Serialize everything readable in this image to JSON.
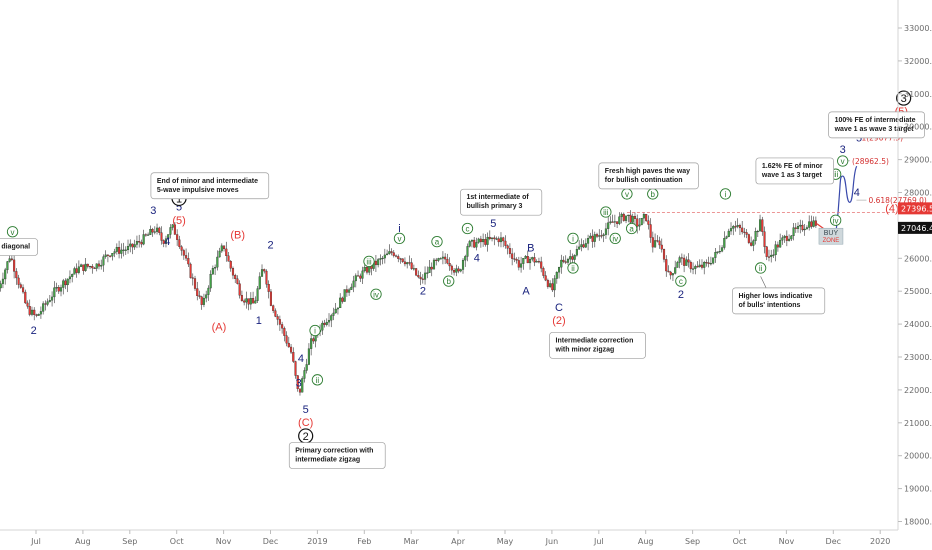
{
  "chart_data": {
    "type": "candlestick",
    "y_axis_side": "right",
    "y_ticks": [
      "33000.0",
      "32000.0",
      "31000.0",
      "30000.0",
      "29000.0",
      "28000.0",
      "27000.0",
      "26000.0",
      "25000.0",
      "24000.0",
      "23000.0",
      "22000.0",
      "21000.0",
      "20000.0",
      "19000.0",
      "18000.0"
    ],
    "ylim": [
      17700,
      33600
    ],
    "x_ticks": [
      {
        "label": "Jul",
        "month_index": 1
      },
      {
        "label": "Aug",
        "month_index": 2
      },
      {
        "label": "Sep",
        "month_index": 3
      },
      {
        "label": "Oct",
        "month_index": 4
      },
      {
        "label": "Nov",
        "month_index": 5
      },
      {
        "label": "Dec",
        "month_index": 6
      },
      {
        "label": "2019",
        "month_index": 7
      },
      {
        "label": "Feb",
        "month_index": 8
      },
      {
        "label": "Mar",
        "month_index": 9
      },
      {
        "label": "Apr",
        "month_index": 10
      },
      {
        "label": "May",
        "month_index": 11
      },
      {
        "label": "Jun",
        "month_index": 12
      },
      {
        "label": "Jul",
        "month_index": 13
      },
      {
        "label": "Aug",
        "month_index": 14
      },
      {
        "label": "Sep",
        "month_index": 15
      },
      {
        "label": "Oct",
        "month_index": 16
      },
      {
        "label": "Nov",
        "month_index": 17
      },
      {
        "label": "Dec",
        "month_index": 18
      },
      {
        "label": "2020",
        "month_index": 19
      }
    ],
    "xlim": [
      0.2,
      19.45
    ],
    "price_path": [
      [
        0.2,
        25100
      ],
      [
        0.45,
        26100
      ],
      [
        0.8,
        24500
      ],
      [
        1.0,
        24200
      ],
      [
        1.4,
        25000
      ],
      [
        1.9,
        25700
      ],
      [
        2.3,
        25800
      ],
      [
        2.6,
        26200
      ],
      [
        3.0,
        26300
      ],
      [
        3.3,
        26600
      ],
      [
        3.55,
        26900
      ],
      [
        3.7,
        26500
      ],
      [
        3.9,
        26950
      ],
      [
        4.0,
        26700
      ],
      [
        4.3,
        25500
      ],
      [
        4.55,
        24500
      ],
      [
        4.75,
        25600
      ],
      [
        5.0,
        26400
      ],
      [
        5.1,
        25900
      ],
      [
        5.4,
        24800
      ],
      [
        5.65,
        24600
      ],
      [
        5.85,
        25800
      ],
      [
        6.0,
        24700
      ],
      [
        6.2,
        24000
      ],
      [
        6.45,
        23100
      ],
      [
        6.6,
        21800
      ],
      [
        6.85,
        23400
      ],
      [
        7.1,
        24000
      ],
      [
        7.4,
        24500
      ],
      [
        7.7,
        25200
      ],
      [
        8.0,
        25600
      ],
      [
        8.3,
        25900
      ],
      [
        8.6,
        26200
      ],
      [
        8.9,
        25900
      ],
      [
        9.2,
        25300
      ],
      [
        9.45,
        25800
      ],
      [
        9.75,
        26000
      ],
      [
        10.0,
        25500
      ],
      [
        10.2,
        26400
      ],
      [
        10.5,
        26500
      ],
      [
        10.9,
        26600
      ],
      [
        11.1,
        26200
      ],
      [
        11.3,
        25800
      ],
      [
        11.5,
        26000
      ],
      [
        11.7,
        25900
      ],
      [
        12.0,
        25000
      ],
      [
        12.2,
        25900
      ],
      [
        12.45,
        26100
      ],
      [
        12.7,
        26500
      ],
      [
        13.0,
        26700
      ],
      [
        13.3,
        27100
      ],
      [
        13.6,
        27300
      ],
      [
        13.85,
        27000
      ],
      [
        14.0,
        27300
      ],
      [
        14.15,
        26400
      ],
      [
        14.3,
        26500
      ],
      [
        14.5,
        25400
      ],
      [
        14.7,
        26000
      ],
      [
        14.9,
        25800
      ],
      [
        15.1,
        25700
      ],
      [
        15.3,
        25800
      ],
      [
        15.55,
        26200
      ],
      [
        15.8,
        27000
      ],
      [
        16.0,
        26900
      ],
      [
        16.25,
        26500
      ],
      [
        16.45,
        27100
      ],
      [
        16.6,
        25900
      ],
      [
        16.75,
        26300
      ],
      [
        16.95,
        26600
      ],
      [
        17.15,
        26800
      ],
      [
        17.3,
        26900
      ],
      [
        17.5,
        27100
      ],
      [
        17.65,
        27050
      ]
    ],
    "projection_red": [
      [
        17.65,
        27050
      ],
      [
        17.8,
        26900
      ],
      [
        17.9,
        26500
      ],
      [
        18.05,
        26700
      ]
    ],
    "projection_blue": [
      [
        18.05,
        26700
      ],
      [
        18.2,
        28500
      ],
      [
        18.35,
        27700
      ],
      [
        18.5,
        28800
      ]
    ],
    "price_labels": [
      {
        "value": "27396.5",
        "price": 27396.5,
        "color": "#e53935"
      },
      {
        "value": "27046.4",
        "price": 27046.4,
        "color": "#111111"
      }
    ],
    "fib_levels": [
      {
        "text": "1(29677.5)",
        "price": 29677.5
      },
      {
        "text": "(28962.5)",
        "price": 28962.5
      },
      {
        "text": "0.618(27769.0)",
        "price": 27769.0
      }
    ],
    "dashed_level": 27396.5,
    "wave_labels": [
      {
        "t": "v",
        "x": 0.5,
        "p": 26700,
        "c": "#2e7d32",
        "circle": true
      },
      {
        "t": "2",
        "x": 0.95,
        "p": 23700,
        "c": "#1a237e"
      },
      {
        "t": "3",
        "x": 3.5,
        "p": 27350,
        "c": "#1a237e"
      },
      {
        "t": "5",
        "x": 4.05,
        "p": 27450,
        "c": "#1a237e"
      },
      {
        "t": "(5)",
        "x": 4.05,
        "p": 27050,
        "c": "#e53935"
      },
      {
        "t": "4",
        "x": 3.8,
        "p": 26400,
        "c": "#1a237e"
      },
      {
        "t": "(B)",
        "x": 5.3,
        "p": 26600,
        "c": "#e53935"
      },
      {
        "t": "(A)",
        "x": 4.9,
        "p": 23800,
        "c": "#e53935"
      },
      {
        "t": "2",
        "x": 6.0,
        "p": 26300,
        "c": "#1a237e"
      },
      {
        "t": "1",
        "x": 5.75,
        "p": 24000,
        "c": "#1a237e"
      },
      {
        "t": "4",
        "x": 6.65,
        "p": 22850,
        "c": "#1a237e"
      },
      {
        "t": "3",
        "x": 6.6,
        "p": 22100,
        "c": "#1a237e"
      },
      {
        "t": "5",
        "x": 6.75,
        "p": 21300,
        "c": "#1a237e"
      },
      {
        "t": "(C)",
        "x": 6.75,
        "p": 20900,
        "c": "#e53935"
      },
      {
        "t": "i",
        "x": 6.95,
        "p": 23700,
        "c": "#2e7d32",
        "circle": true
      },
      {
        "t": "ii",
        "x": 7.0,
        "p": 22200,
        "c": "#2e7d32",
        "circle": true
      },
      {
        "t": "i",
        "x": 8.75,
        "p": 26800,
        "c": "#1a237e"
      },
      {
        "t": "v",
        "x": 8.75,
        "p": 26500,
        "c": "#2e7d32",
        "circle": true
      },
      {
        "t": "iii",
        "x": 8.1,
        "p": 25800,
        "c": "#2e7d32",
        "circle": true
      },
      {
        "t": "iv",
        "x": 8.25,
        "p": 24800,
        "c": "#2e7d32",
        "circle": true
      },
      {
        "t": "2",
        "x": 9.25,
        "p": 24900,
        "c": "#1a237e"
      },
      {
        "t": "a",
        "x": 9.55,
        "p": 26400,
        "c": "#2e7d32",
        "circle": true
      },
      {
        "t": "b",
        "x": 9.8,
        "p": 25200,
        "c": "#2e7d32",
        "circle": true
      },
      {
        "t": "3",
        "x": 10.25,
        "p": 27300,
        "c": "#1a237e"
      },
      {
        "t": "c",
        "x": 10.2,
        "p": 26800,
        "c": "#2e7d32",
        "circle": true
      },
      {
        "t": "4",
        "x": 10.4,
        "p": 25900,
        "c": "#1a237e"
      },
      {
        "t": "5",
        "x": 10.75,
        "p": 26950,
        "c": "#1a237e"
      },
      {
        "t": "(1)",
        "x": 10.75,
        "p": 27400,
        "c": "#e53935"
      },
      {
        "t": "B",
        "x": 11.55,
        "p": 26200,
        "c": "#1a237e"
      },
      {
        "t": "A",
        "x": 11.45,
        "p": 24900,
        "c": "#1a237e"
      },
      {
        "t": "C",
        "x": 12.15,
        "p": 24400,
        "c": "#1a237e"
      },
      {
        "t": "(2)",
        "x": 12.15,
        "p": 24000,
        "c": "#e53935"
      },
      {
        "t": "i",
        "x": 12.45,
        "p": 26500,
        "c": "#2e7d32",
        "circle": true
      },
      {
        "t": "ii",
        "x": 12.45,
        "p": 25600,
        "c": "#2e7d32",
        "circle": true
      },
      {
        "t": "iii",
        "x": 13.15,
        "p": 27300,
        "c": "#2e7d32",
        "circle": true
      },
      {
        "t": "iv",
        "x": 13.35,
        "p": 26500,
        "c": "#2e7d32",
        "circle": true
      },
      {
        "t": "v",
        "x": 13.6,
        "p": 27850,
        "c": "#2e7d32",
        "circle": true
      },
      {
        "t": "a",
        "x": 13.7,
        "p": 26800,
        "c": "#2e7d32",
        "circle": true
      },
      {
        "t": "b",
        "x": 14.15,
        "p": 27850,
        "c": "#2e7d32",
        "circle": true
      },
      {
        "t": "c",
        "x": 14.75,
        "p": 25200,
        "c": "#2e7d32",
        "circle": true
      },
      {
        "t": "2",
        "x": 14.75,
        "p": 24800,
        "c": "#1a237e"
      },
      {
        "t": "i",
        "x": 15.7,
        "p": 27850,
        "c": "#2e7d32",
        "circle": true
      },
      {
        "t": "ii",
        "x": 16.45,
        "p": 25600,
        "c": "#2e7d32",
        "circle": true
      },
      {
        "t": "iii",
        "x": 18.05,
        "p": 28450,
        "c": "#2e7d32",
        "circle": true
      },
      {
        "t": "iv",
        "x": 18.05,
        "p": 27050,
        "c": "#2e7d32",
        "circle": true
      },
      {
        "t": "v",
        "x": 18.2,
        "p": 28850,
        "c": "#2e7d32",
        "circle": true
      },
      {
        "t": "3",
        "x": 18.2,
        "p": 29200,
        "c": "#1a237e"
      },
      {
        "t": "4",
        "x": 18.5,
        "p": 27900,
        "c": "#1a237e"
      },
      {
        "t": "(3)",
        "x": 18.55,
        "p": 29950,
        "c": "#e53935"
      },
      {
        "t": "5",
        "x": 18.55,
        "p": 29550,
        "c": "#1a237e"
      },
      {
        "t": "(4)",
        "x": 19.25,
        "p": 27400,
        "c": "#e53935"
      },
      {
        "t": "(5)",
        "x": 19.45,
        "p": 30350,
        "c": "#e53935"
      }
    ],
    "big_circles": [
      {
        "t": "1",
        "x": 4.05,
        "p": 27820
      },
      {
        "t": "2",
        "x": 6.75,
        "p": 20600
      },
      {
        "t": "3",
        "x": 19.5,
        "p": 30870
      }
    ],
    "annotations": [
      {
        "text": [
          "End of minor and intermediate",
          "5-wave impulsive moves"
        ],
        "x": 3.45,
        "p": 28600,
        "anchor": [
          4.05,
          28100
        ]
      },
      {
        "text": [
          "1st intermediate of",
          "bullish primary 3"
        ],
        "x": 10.05,
        "p": 28100,
        "anchor": [
          10.6,
          27550
        ]
      },
      {
        "text": [
          "Fresh high paves the way",
          "for bullish continuation"
        ],
        "x": 13.0,
        "p": 28900,
        "anchor": [
          13.55,
          28150
        ]
      },
      {
        "text": [
          "1.62% FE of minor",
          "wave 1 as 3 target"
        ],
        "x": 16.35,
        "p": 29050,
        "anchor": null
      },
      {
        "text": [
          "100% FE of intermediate",
          "wave 1 as wave 3 target"
        ],
        "x": 17.9,
        "p": 30450,
        "anchor": null
      },
      {
        "text": [
          "Primary correction with",
          "intermediate zigzag"
        ],
        "x": 6.4,
        "p": 20400,
        "anchor": null
      },
      {
        "text": [
          "Intermediate correction",
          "with minor zigzag"
        ],
        "x": 11.95,
        "p": 23750,
        "anchor": null
      },
      {
        "text": [
          "Higher lows indicative",
          "of bulls' intentions"
        ],
        "x": 15.85,
        "p": 25100,
        "anchor": [
          16.45,
          25450
        ]
      },
      {
        "text": [
          "g diagonal"
        ],
        "x": 0.0,
        "p": 26600,
        "anchor": null
      }
    ],
    "buy_zone": {
      "label": "BUY",
      "sub": "ZONE",
      "x": 17.95,
      "p": 26550
    }
  }
}
